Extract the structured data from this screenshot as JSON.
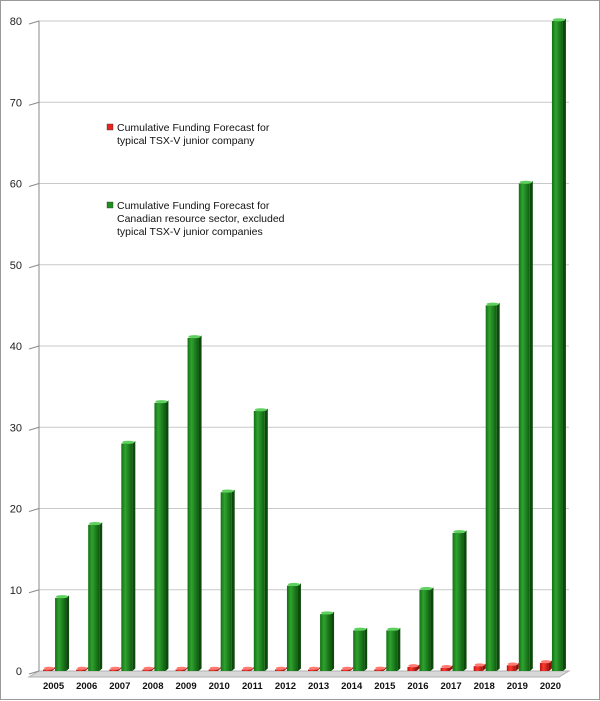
{
  "chart_data": {
    "type": "bar",
    "title": "",
    "xlabel": "",
    "ylabel": "",
    "ylim": [
      0,
      80
    ],
    "yticks": [
      0,
      10,
      20,
      30,
      40,
      50,
      60,
      70,
      80
    ],
    "grid": true,
    "legend_position": "upper-left",
    "categories": [
      "2005",
      "2006",
      "2007",
      "2008",
      "2009",
      "2010",
      "2011",
      "2012",
      "2013",
      "2014",
      "2015",
      "2016",
      "2017",
      "2018",
      "2019",
      "2020"
    ],
    "series": [
      {
        "name": "Cumulative Funding Forecast for typical TSX-V junior company",
        "legend_lines": [
          "Cumulative Funding Forecast for",
          "typical TSX-V junior company"
        ],
        "color": "#e8261f",
        "values": [
          0.05,
          0.05,
          0.05,
          0.05,
          0.05,
          0.05,
          0.05,
          0.05,
          0.05,
          0.05,
          0.2,
          0.5,
          0.4,
          0.6,
          0.7,
          1.0
        ]
      },
      {
        "name": "Cumulative Funding Forecast for Canadian resource sector, excluded typical TSX-V junior companies",
        "legend_lines": [
          "Cumulative Funding Forecast for",
          "Canadian resource sector, excluded",
          "typical TSX-V junior companies"
        ],
        "color": "#1f8f1f",
        "values": [
          9,
          18,
          28,
          33,
          41,
          22,
          32,
          10.5,
          7,
          5,
          5,
          10,
          17,
          45,
          60,
          80
        ]
      }
    ]
  }
}
